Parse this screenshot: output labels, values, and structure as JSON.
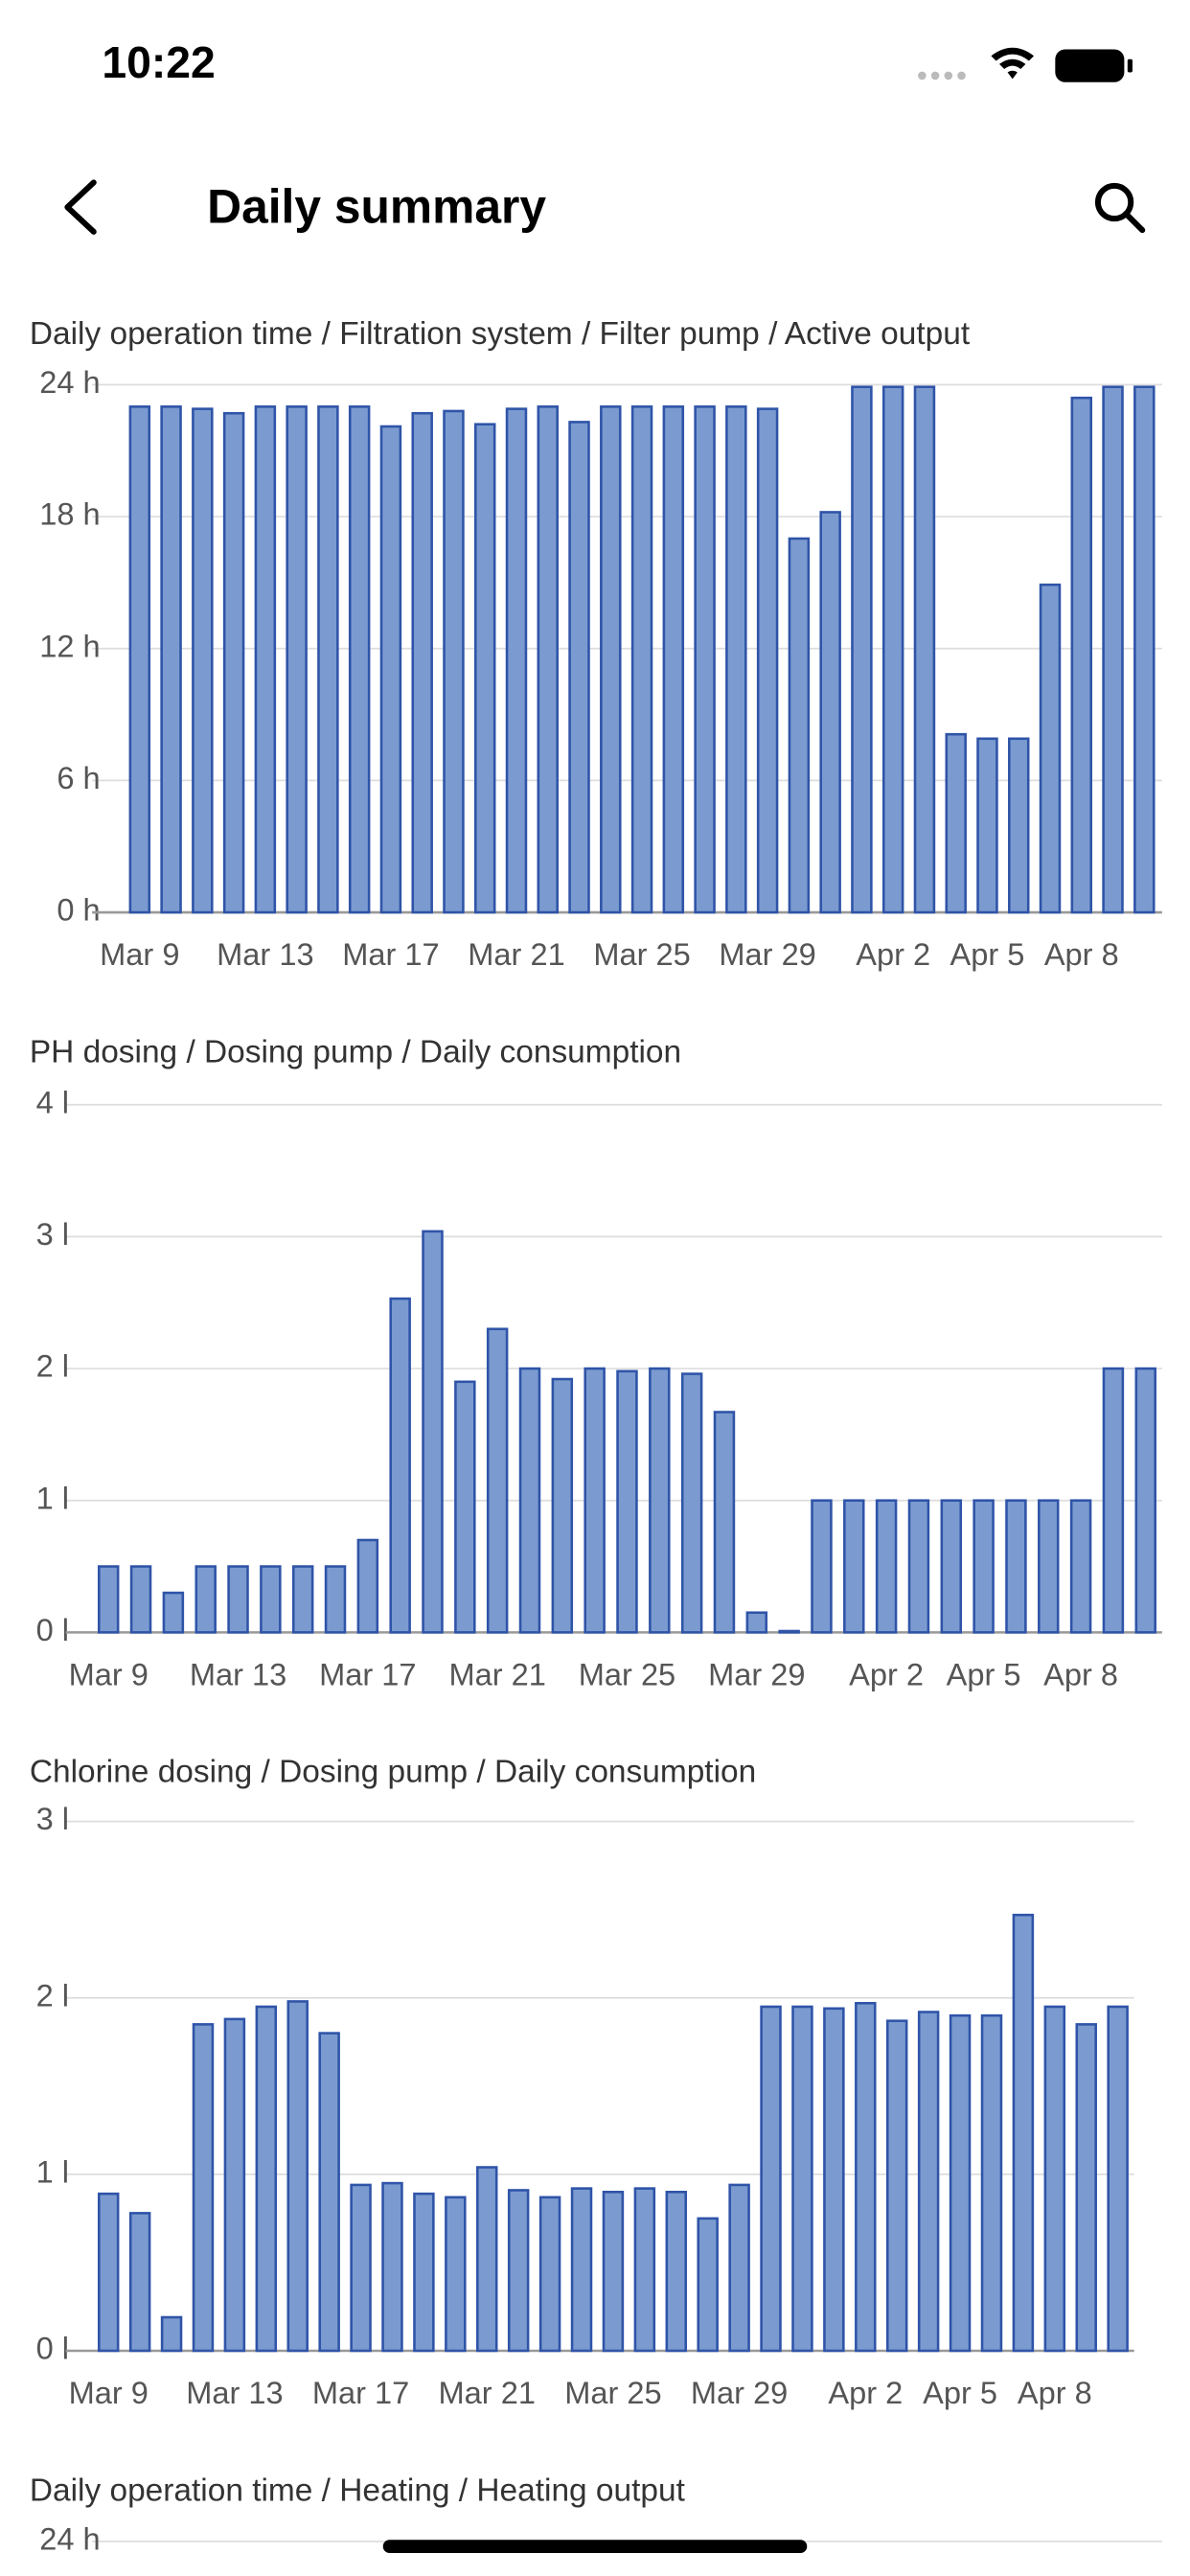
{
  "status_bar": {
    "time": "10:22"
  },
  "header": {
    "title": "Daily summary"
  },
  "chart_data": [
    {
      "type": "bar",
      "title": "Daily operation time / Filtration system / Filter pump / Active output",
      "categories": [
        "Mar 9",
        null,
        null,
        null,
        "Mar 13",
        null,
        null,
        null,
        "Mar 17",
        null,
        null,
        null,
        "Mar 21",
        null,
        null,
        null,
        "Mar 25",
        null,
        null,
        null,
        "Mar 29",
        null,
        null,
        null,
        "Apr 2",
        null,
        null,
        "Apr 5",
        null,
        null,
        "Apr 8",
        null,
        null
      ],
      "values": [
        23,
        23,
        22.9,
        22.7,
        23,
        23,
        23,
        23,
        22.1,
        22.7,
        22.8,
        22.2,
        22.9,
        23,
        22.3,
        23,
        23,
        23,
        23,
        23,
        22.9,
        17,
        18.2,
        23.9,
        23.9,
        23.9,
        8.1,
        7.9,
        7.9,
        14.9,
        23.4,
        23.9,
        23.9
      ],
      "color": "#7b9bd0",
      "ylim": [
        0,
        24
      ],
      "yticks": [
        {
          "value": 0,
          "label": "0 h"
        },
        {
          "value": 6,
          "label": "6 h"
        },
        {
          "value": 12,
          "label": "12 h"
        },
        {
          "value": 18,
          "label": "18 h"
        },
        {
          "value": 24,
          "label": "24 h"
        }
      ],
      "grid": true
    },
    {
      "type": "bar",
      "title": "PH dosing / Dosing pump / Daily consumption",
      "categories": [
        "Mar 9",
        null,
        null,
        null,
        "Mar 13",
        null,
        null,
        null,
        "Mar 17",
        null,
        null,
        null,
        "Mar 21",
        null,
        null,
        null,
        "Mar 25",
        null,
        null,
        null,
        "Mar 29",
        null,
        null,
        null,
        "Apr 2",
        null,
        null,
        "Apr 5",
        null,
        null,
        "Apr 8",
        null,
        null
      ],
      "values": [
        0.5,
        0.5,
        0.3,
        0.5,
        0.5,
        0.5,
        0.5,
        0.5,
        0.7,
        2.53,
        3.04,
        1.9,
        2.3,
        2.0,
        1.92,
        2.0,
        1.98,
        2.0,
        1.96,
        1.67,
        0.15,
        0.01,
        1.0,
        1.0,
        1.0,
        1.0,
        1.0,
        1.0,
        1.0,
        1.0,
        1.0,
        2.0,
        2.0
      ],
      "color": "#7b9bd0",
      "ylim": [
        0,
        4
      ],
      "yticks": [
        {
          "value": 0,
          "label": "0 l"
        },
        {
          "value": 1,
          "label": "1 l"
        },
        {
          "value": 2,
          "label": "2 l"
        },
        {
          "value": 3,
          "label": "3 l"
        },
        {
          "value": 4,
          "label": "4 l"
        }
      ],
      "grid": true
    },
    {
      "type": "bar",
      "title": "Chlorine dosing / Dosing pump / Daily consumption",
      "categories": [
        "Mar 9",
        null,
        null,
        null,
        "Mar 13",
        null,
        null,
        null,
        "Mar 17",
        null,
        null,
        null,
        "Mar 21",
        null,
        null,
        null,
        "Mar 25",
        null,
        null,
        null,
        "Mar 29",
        null,
        null,
        null,
        "Apr 2",
        null,
        null,
        "Apr 5",
        null,
        null,
        "Apr 8",
        null,
        null
      ],
      "values": [
        0.89,
        0.78,
        0.19,
        1.85,
        1.88,
        1.95,
        1.98,
        1.8,
        0.94,
        0.95,
        0.89,
        0.87,
        1.04,
        0.91,
        0.87,
        0.92,
        0.9,
        0.92,
        0.9,
        0.75,
        0.94,
        1.95,
        1.95,
        1.94,
        1.97,
        1.87,
        1.92,
        1.9,
        1.9,
        2.47,
        1.95,
        1.85,
        1.95
      ],
      "color": "#7b9bd0",
      "ylim": [
        0,
        3
      ],
      "yticks": [
        {
          "value": 0,
          "label": "0 l"
        },
        {
          "value": 1,
          "label": "1 l"
        },
        {
          "value": 2,
          "label": "2 l"
        },
        {
          "value": 3,
          "label": "3 l"
        }
      ],
      "grid": true
    },
    {
      "type": "bar",
      "title": "Daily operation time / Heating / Heating output",
      "ylim": [
        0,
        24
      ],
      "yticks": [
        {
          "value": 24,
          "label": "24 h"
        }
      ],
      "grid": true
    }
  ]
}
